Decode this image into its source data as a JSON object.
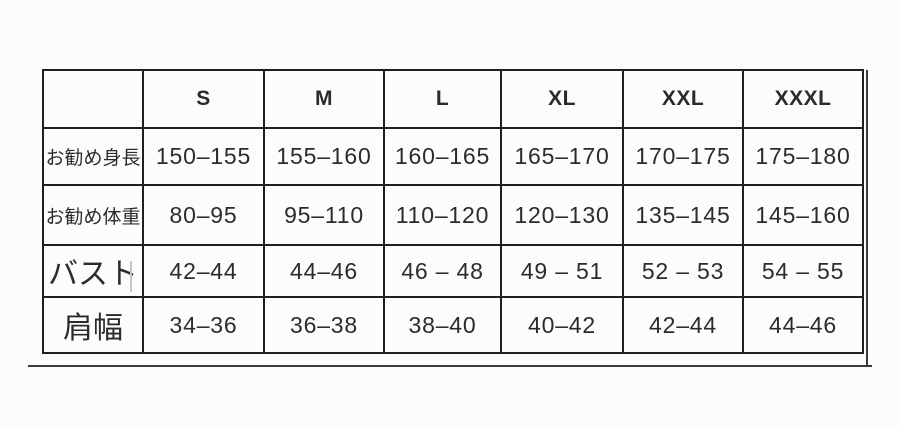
{
  "chart_data": {
    "type": "table",
    "columns": [
      "",
      "S",
      "M",
      "L",
      "XL",
      "XXL",
      "XXXL"
    ],
    "row_labels": [
      "お勧め身長",
      "お勧め体重",
      "バスト",
      "肩幅"
    ],
    "rows": [
      [
        "150–155",
        "155–160",
        "160–165",
        "165–170",
        "170–175",
        "175–180"
      ],
      [
        "80–95",
        "95–110",
        "110–120",
        "120–130",
        "135–145",
        "145–160"
      ],
      [
        "42–44",
        "44–46",
        "46 – 48",
        "49 – 51",
        "52 – 53",
        "54 – 55"
      ],
      [
        "34–36",
        "36–38",
        "38–40",
        "40–42",
        "42–44",
        "44–46"
      ]
    ],
    "layout": {
      "grid": true,
      "header_row": true,
      "label_column": true
    }
  },
  "colors": {
    "background": "#fbfbfb",
    "border": "#1f1f1f",
    "text": "#2b2b2b"
  }
}
